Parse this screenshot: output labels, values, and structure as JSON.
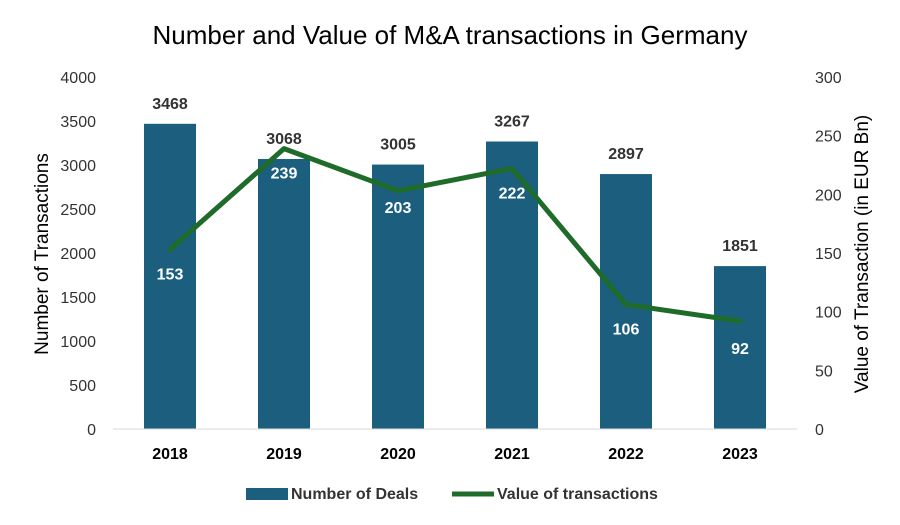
{
  "chart_data": {
    "type": "bar",
    "title": "Number and Value of M&A transactions in Germany",
    "categories": [
      "2018",
      "2019",
      "2020",
      "2021",
      "2022",
      "2023"
    ],
    "series": [
      {
        "name": "Number of Deals",
        "type": "bar",
        "axis": "left",
        "values": [
          3468,
          3068,
          3005,
          3267,
          2897,
          1851
        ]
      },
      {
        "name": "Value of transactions",
        "type": "line",
        "axis": "right",
        "values": [
          153,
          239,
          203,
          222,
          106,
          92
        ]
      }
    ],
    "ylabel": "Number of Transactions",
    "y2label": "Value of Transaction (in EUR Bn)",
    "ylim": [
      0,
      4000
    ],
    "y2lim": [
      0,
      300
    ],
    "yticks": [
      "0",
      "500",
      "1000",
      "1500",
      "2000",
      "2500",
      "3000",
      "3500",
      "4000"
    ],
    "y2ticks": [
      "0",
      "50",
      "100",
      "150",
      "200",
      "250",
      "300"
    ],
    "grid": false,
    "legend_position": "bottom",
    "colors": {
      "bar": "#1b5e7e",
      "line": "#1e6b2a",
      "axis": "#d9d9d9"
    }
  }
}
